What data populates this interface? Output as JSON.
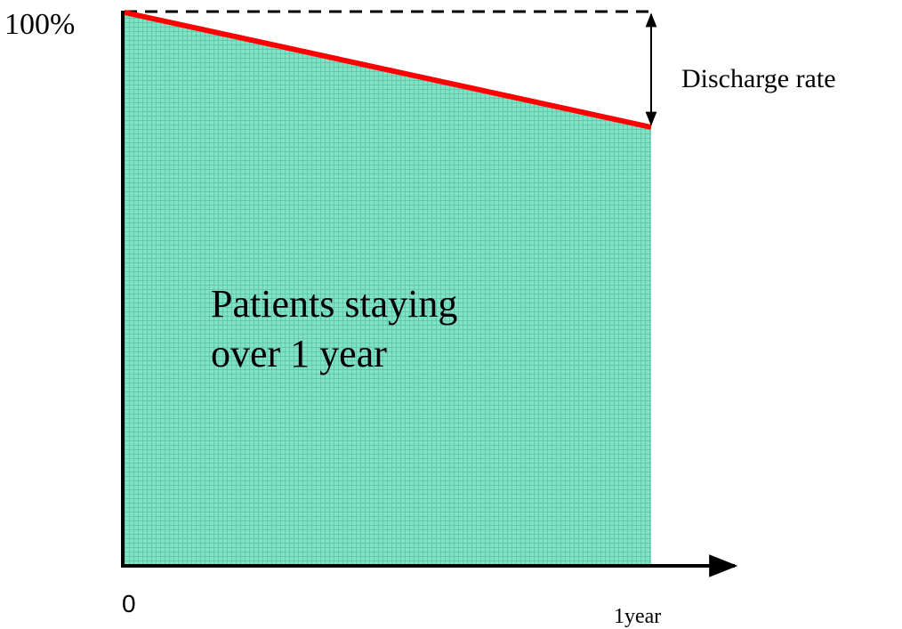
{
  "axis": {
    "y_top_label": "100%",
    "x_origin_label": "0",
    "x_end_label": "1year"
  },
  "annotation": {
    "label": "Discharge rate"
  },
  "area": {
    "label_lines": [
      "Patients staying",
      "over 1 year"
    ]
  }
}
